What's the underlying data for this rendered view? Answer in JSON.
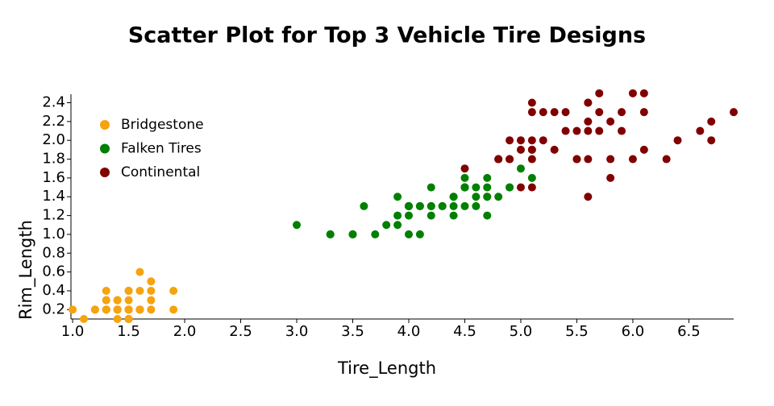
{
  "chart_data": {
    "type": "scatter",
    "title": "Scatter Plot for Top 3 Vehicle Tire Designs",
    "x_label": "Tire_Length",
    "y_label": "Rim_Length",
    "xlim": [
      0.985,
      6.9
    ],
    "ylim": [
      0.1,
      2.49
    ],
    "xticks": [
      {
        "value": 1,
        "label": "1.0"
      },
      1.5,
      {
        "value": 2,
        "label": "2.0"
      },
      2.5,
      {
        "value": 3,
        "label": "3.0"
      },
      3.5,
      {
        "value": 4,
        "label": "4.0"
      },
      4.5,
      {
        "value": 5,
        "label": "5.0"
      },
      5.5,
      {
        "value": 6,
        "label": "6.0"
      },
      6.5
    ],
    "yticks": [
      0.2,
      0.4,
      0.6,
      0.8,
      {
        "value": 1,
        "label": "1.0"
      },
      1.2,
      1.4,
      1.6,
      1.8,
      {
        "value": 2,
        "label": "2.0"
      },
      2.2,
      2.4
    ],
    "legend": "top-left",
    "series": [
      {
        "name": "Bridgestone",
        "color": "#f5a30f",
        "x": [
          1.4,
          1.4,
          1.3,
          1.5,
          1.4,
          1.7,
          1.4,
          1.5,
          1.4,
          1.5,
          1.5,
          1.6,
          1.4,
          1.1,
          1.2,
          1.5,
          1.3,
          1.4,
          1.7,
          1.5,
          1.7,
          1.5,
          1.0,
          1.7,
          1.9,
          1.6,
          1.6,
          1.5,
          1.4,
          1.6,
          1.6,
          1.5,
          1.5,
          1.4,
          1.5,
          1.2,
          1.3,
          1.5,
          1.3,
          1.5,
          1.3,
          1.3,
          1.3,
          1.6,
          1.9,
          1.4,
          1.6,
          1.4,
          1.5,
          1.4
        ],
        "values": [
          0.2,
          0.2,
          0.2,
          0.2,
          0.2,
          0.4,
          0.3,
          0.2,
          0.2,
          0.1,
          0.2,
          0.2,
          0.1,
          0.1,
          0.2,
          0.4,
          0.4,
          0.3,
          0.3,
          0.3,
          0.2,
          0.4,
          0.2,
          0.5,
          0.2,
          0.2,
          0.4,
          0.2,
          0.2,
          0.2,
          0.2,
          0.4,
          0.1,
          0.2,
          0.1,
          0.2,
          0.2,
          0.1,
          0.2,
          0.2,
          0.3,
          0.3,
          0.2,
          0.6,
          0.4,
          0.3,
          0.2,
          0.2,
          0.2,
          0.2
        ]
      },
      {
        "name": "Falken Tires",
        "color": "#008000",
        "x": [
          4.7,
          4.5,
          4.9,
          4.0,
          4.6,
          4.5,
          4.7,
          3.3,
          4.6,
          3.9,
          3.5,
          4.2,
          4.0,
          4.7,
          3.6,
          4.4,
          4.5,
          4.1,
          4.5,
          3.9,
          4.8,
          4.0,
          4.9,
          4.7,
          4.3,
          4.4,
          4.8,
          5.0,
          4.5,
          3.5,
          3.8,
          3.7,
          3.9,
          5.1,
          4.5,
          4.5,
          4.7,
          4.4,
          4.1,
          4.0,
          4.4,
          4.6,
          4.0,
          3.3,
          4.2,
          4.2,
          4.2,
          4.3,
          3.0,
          4.1
        ],
        "values": [
          1.4,
          1.5,
          1.5,
          1.3,
          1.5,
          1.3,
          1.6,
          1.0,
          1.3,
          1.4,
          1.0,
          1.5,
          1.0,
          1.4,
          1.3,
          1.4,
          1.5,
          1.0,
          1.5,
          1.1,
          1.8,
          1.3,
          1.5,
          1.2,
          1.3,
          1.4,
          1.4,
          1.7,
          1.5,
          1.0,
          1.1,
          1.0,
          1.2,
          1.6,
          1.5,
          1.6,
          1.5,
          1.3,
          1.3,
          1.3,
          1.2,
          1.4,
          1.2,
          1.0,
          1.3,
          1.2,
          1.3,
          1.3,
          1.1,
          1.3
        ]
      },
      {
        "name": "Continental",
        "color": "#800000",
        "x": [
          6.0,
          5.1,
          5.9,
          5.6,
          5.8,
          6.6,
          4.5,
          6.3,
          5.8,
          6.1,
          5.1,
          5.3,
          5.5,
          5.0,
          5.1,
          5.3,
          5.5,
          6.7,
          6.9,
          5.0,
          5.7,
          4.9,
          6.7,
          4.9,
          5.7,
          6.0,
          4.8,
          4.9,
          5.6,
          5.8,
          6.1,
          6.4,
          5.6,
          5.1,
          5.6,
          6.1,
          5.6,
          5.5,
          4.8,
          5.4,
          5.6,
          5.1,
          5.1,
          5.9,
          5.7,
          5.2,
          5.0,
          5.2,
          5.4,
          5.1
        ],
        "values": [
          2.5,
          1.9,
          2.1,
          1.8,
          2.2,
          2.1,
          1.7,
          1.8,
          1.8,
          2.5,
          2.0,
          1.9,
          2.1,
          2.0,
          2.4,
          2.3,
          1.8,
          2.2,
          2.3,
          1.5,
          2.3,
          2.0,
          2.0,
          1.8,
          2.1,
          1.8,
          1.8,
          1.8,
          2.1,
          1.6,
          1.9,
          2.0,
          2.2,
          1.5,
          1.4,
          2.3,
          2.4,
          1.8,
          1.8,
          2.1,
          2.4,
          2.3,
          1.9,
          2.3,
          2.5,
          2.3,
          1.9,
          2.0,
          2.3,
          1.8
        ]
      }
    ]
  }
}
